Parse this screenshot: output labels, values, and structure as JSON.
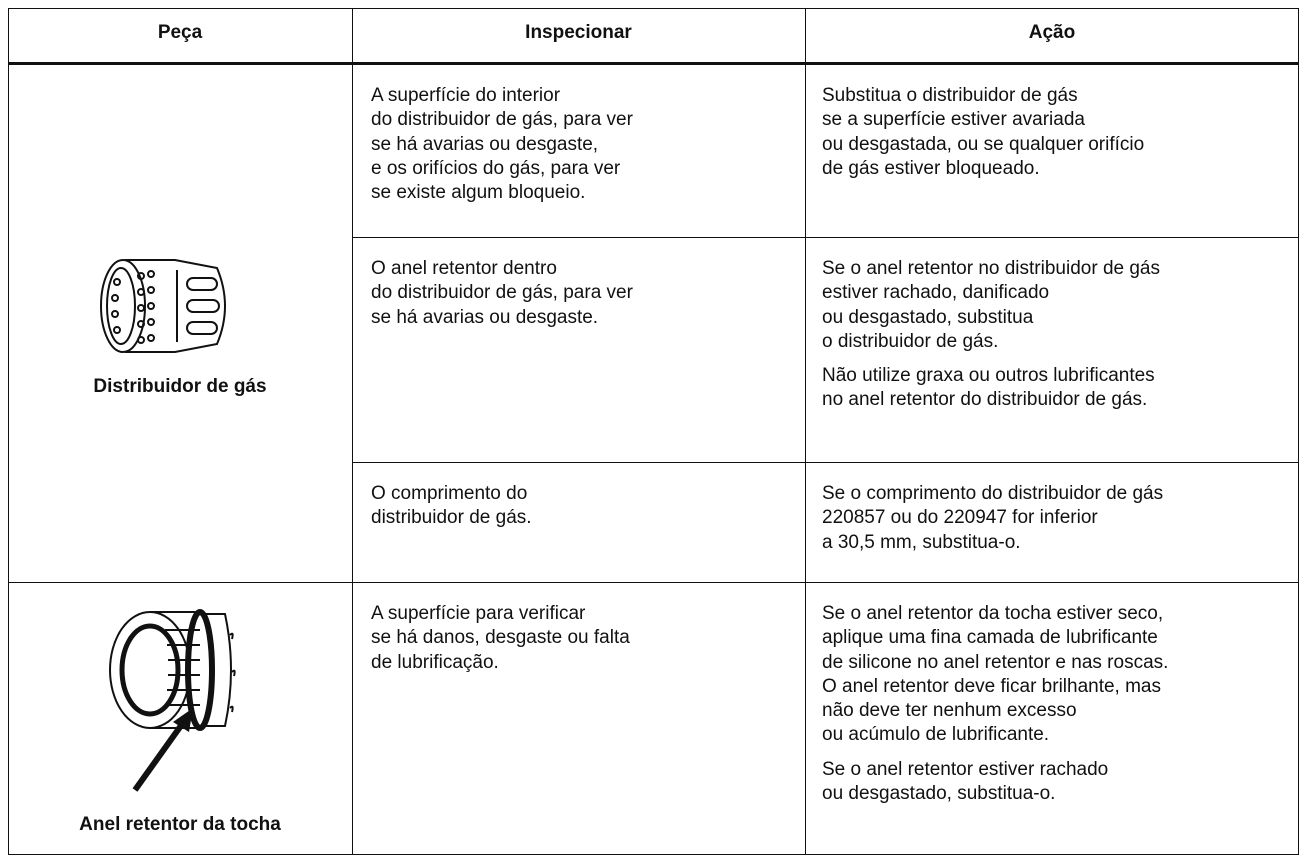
{
  "table": {
    "header": [
      "Peça",
      "Inspecionar",
      "Ação"
    ],
    "groups": [
      {
        "part": "Distribuidor de gás",
        "rows": [
          {
            "inspect": [
              "A superfície do interior",
              "do distribuidor de gás, para ver",
              "se há avarias ou desgaste,",
              "e os orifícios do gás, para ver",
              "se existe algum bloqueio."
            ],
            "action": [
              [
                "Substitua o distribuidor de gás",
                "se a superfície estiver avariada",
                "ou desgastada, ou se qualquer orifício",
                "de gás estiver bloqueado."
              ]
            ]
          },
          {
            "inspect": [
              "O anel retentor dentro",
              "do distribuidor de gás, para ver",
              "se há avarias ou desgaste."
            ],
            "action": [
              [
                "Se o anel retentor no distribuidor de gás",
                "estiver rachado, danificado",
                "ou desgastado, substitua",
                "o distribuidor de gás."
              ],
              [
                "Não utilize graxa ou outros lubrificantes",
                "no anel retentor do distribuidor de gás."
              ]
            ]
          },
          {
            "inspect": [
              "O comprimento do",
              "distribuidor de gás."
            ],
            "action": [
              [
                "Se o comprimento do distribuidor de gás",
                "220857 ou do 220947 for inferior",
                "a 30,5 mm, substitua-o."
              ]
            ]
          }
        ]
      },
      {
        "part": "Anel retentor da tocha",
        "rows": [
          {
            "inspect": [
              "A superfície para verificar",
              "se há danos, desgaste ou falta",
              "de lubrificação."
            ],
            "action": [
              [
                "Se o anel retentor da tocha estiver seco,",
                "aplique uma fina camada de lubrificante",
                "de silicone no anel retentor e nas roscas.",
                "O anel retentor deve ficar brilhante, mas",
                "não deve ter nenhum excesso",
                "ou acúmulo de lubrificante."
              ],
              [
                "Se o anel retentor estiver rachado",
                "ou desgastado, substitua-o."
              ]
            ]
          }
        ]
      }
    ]
  }
}
